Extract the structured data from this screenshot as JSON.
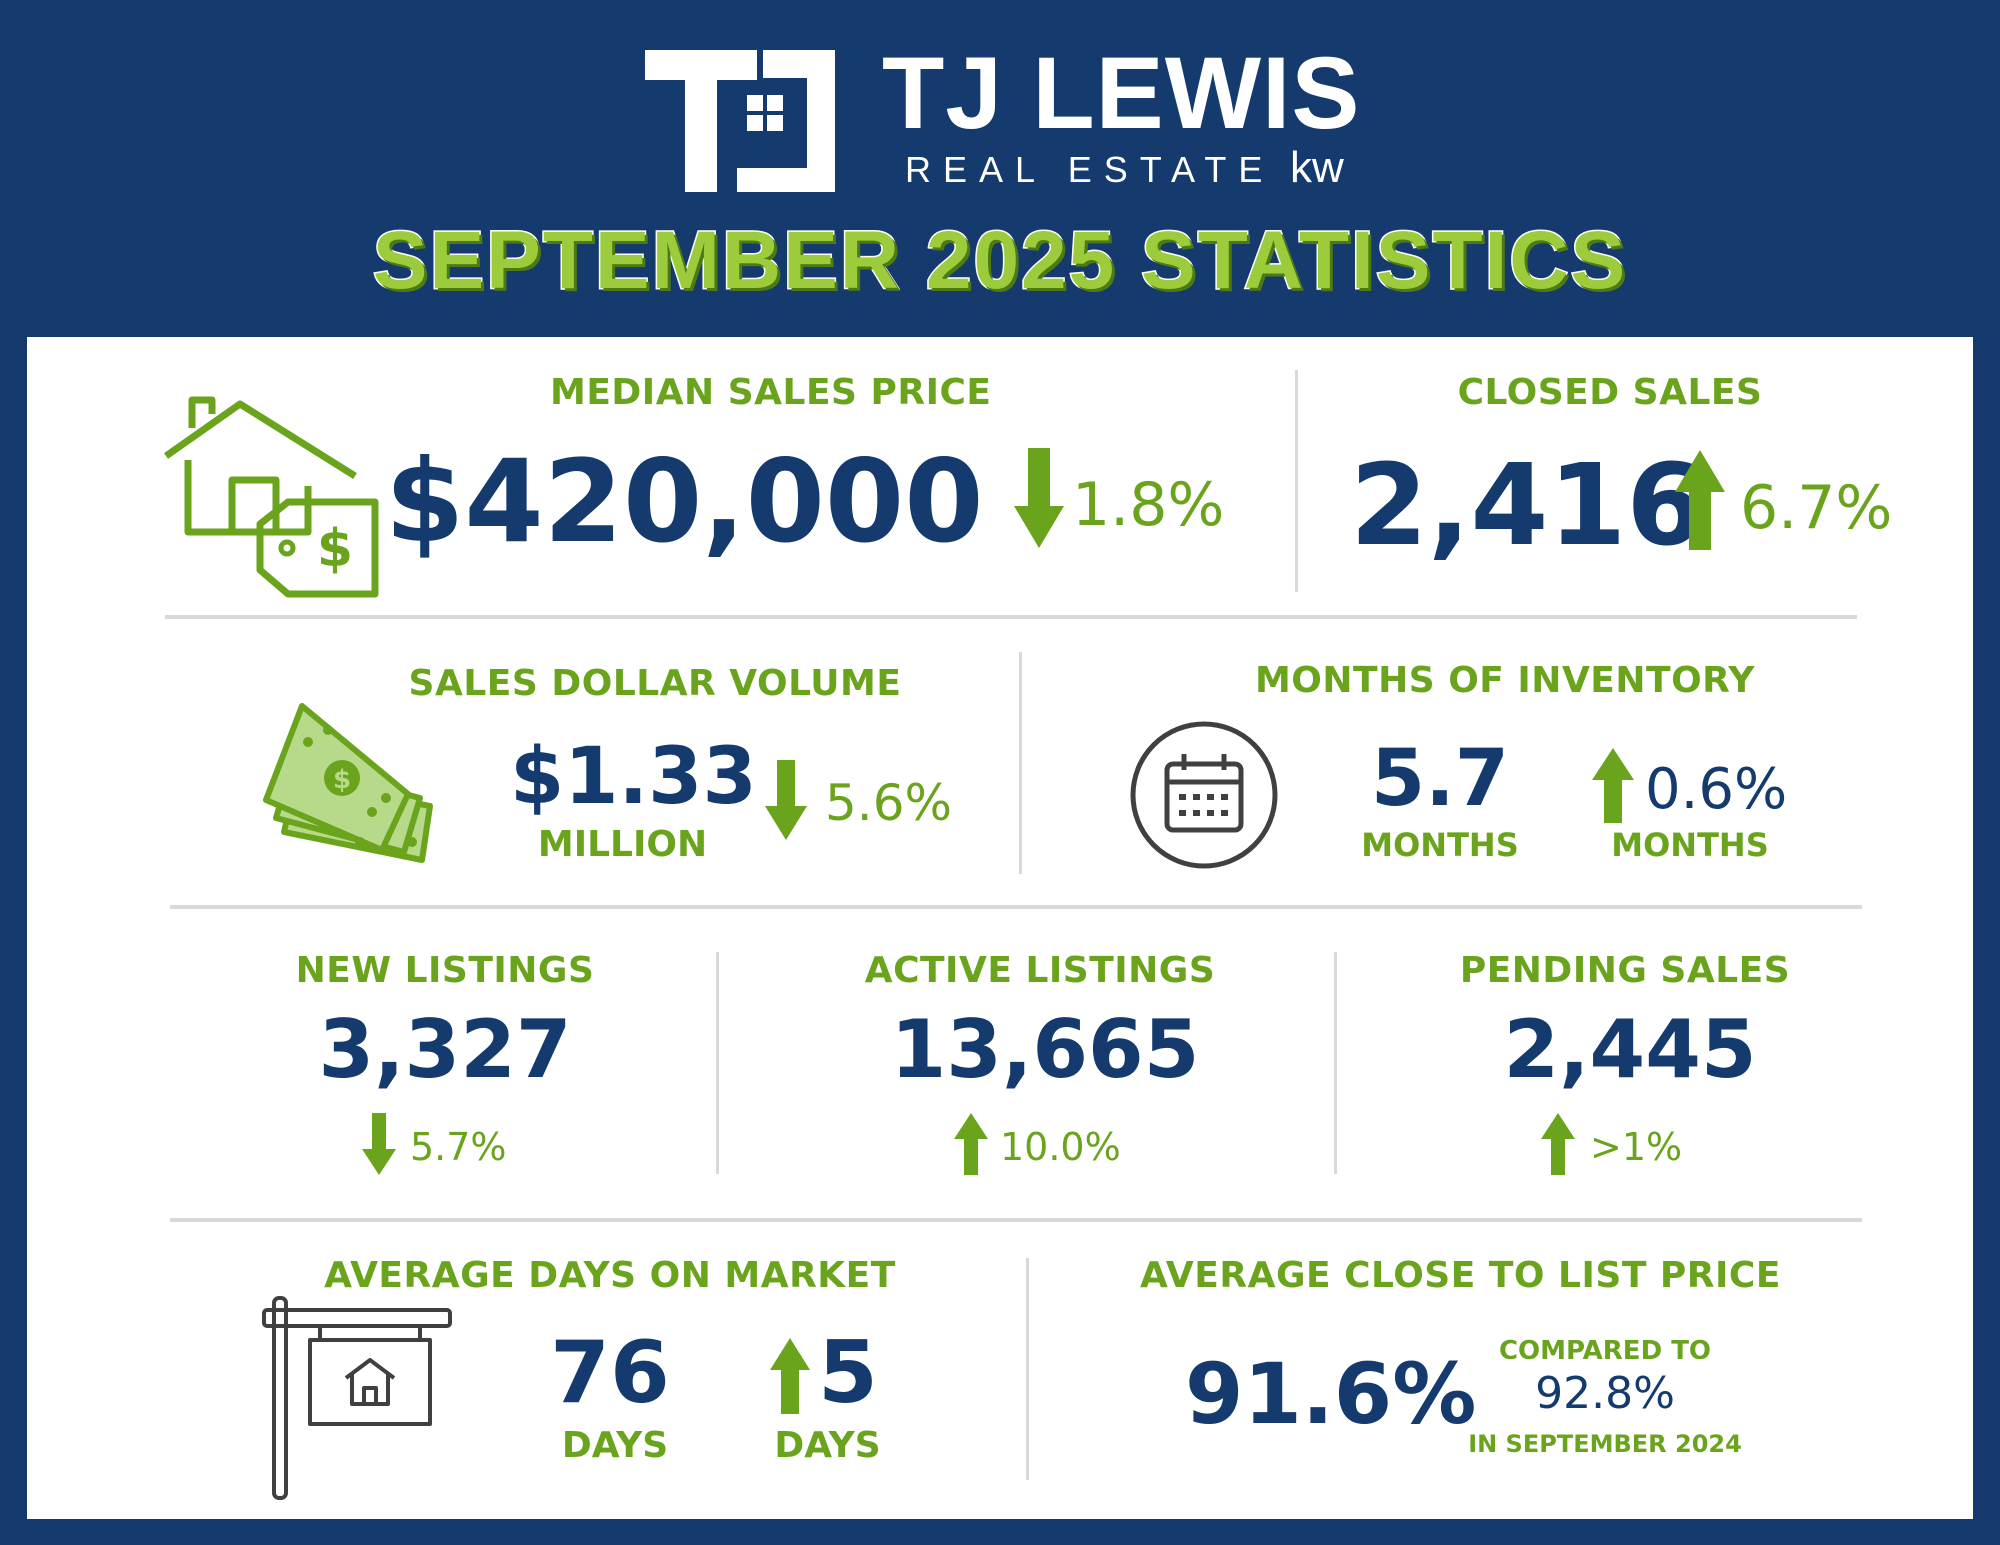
{
  "brand": {
    "name": "TJ LEWIS",
    "tagline": "REAL ESTATE",
    "kw_mark": "kw"
  },
  "title": "SEPTEMBER 2025 STATISTICS",
  "colors": {
    "navy": "#143a6e",
    "green": "#6aa31c",
    "divider": "#d9d9d9"
  },
  "median_sales_price": {
    "label": "MEDIAN SALES PRICE",
    "value": "$420,000",
    "change": "1.8%",
    "direction": "down",
    "icon": "house-price-tag-icon"
  },
  "closed_sales": {
    "label": "CLOSED SALES",
    "value": "2,416",
    "change": "6.7%",
    "direction": "up"
  },
  "sales_dollar_volume": {
    "label": "SALES DOLLAR VOLUME",
    "value": "$1.33",
    "unit": "MILLION",
    "change": "5.6%",
    "direction": "down",
    "icon": "money-stack-icon"
  },
  "months_of_inventory": {
    "label": "MONTHS OF INVENTORY",
    "value": "5.7",
    "unit": "MONTHS",
    "change": "0.6%",
    "change_unit": "MONTHS",
    "direction": "up",
    "icon": "calendar-icon"
  },
  "new_listings": {
    "label": "NEW LISTINGS",
    "value": "3,327",
    "change": "5.7%",
    "direction": "down"
  },
  "active_listings": {
    "label": "ACTIVE LISTINGS",
    "value": "13,665",
    "change": "10.0%",
    "direction": "up"
  },
  "pending_sales": {
    "label": "PENDING SALES",
    "value": "2,445",
    "change": ">1%",
    "direction": "up"
  },
  "average_days_on_market": {
    "label": "AVERAGE DAYS ON MARKET",
    "value": "76",
    "unit": "DAYS",
    "change": "5",
    "change_unit": "DAYS",
    "direction": "up",
    "icon": "for-sale-sign-icon"
  },
  "average_close_to_list": {
    "label": "AVERAGE CLOSE TO LIST PRICE",
    "value": "91.6%",
    "compared_label": "COMPARED TO",
    "compared_value": "92.8%",
    "compared_period": "IN SEPTEMBER 2024"
  }
}
